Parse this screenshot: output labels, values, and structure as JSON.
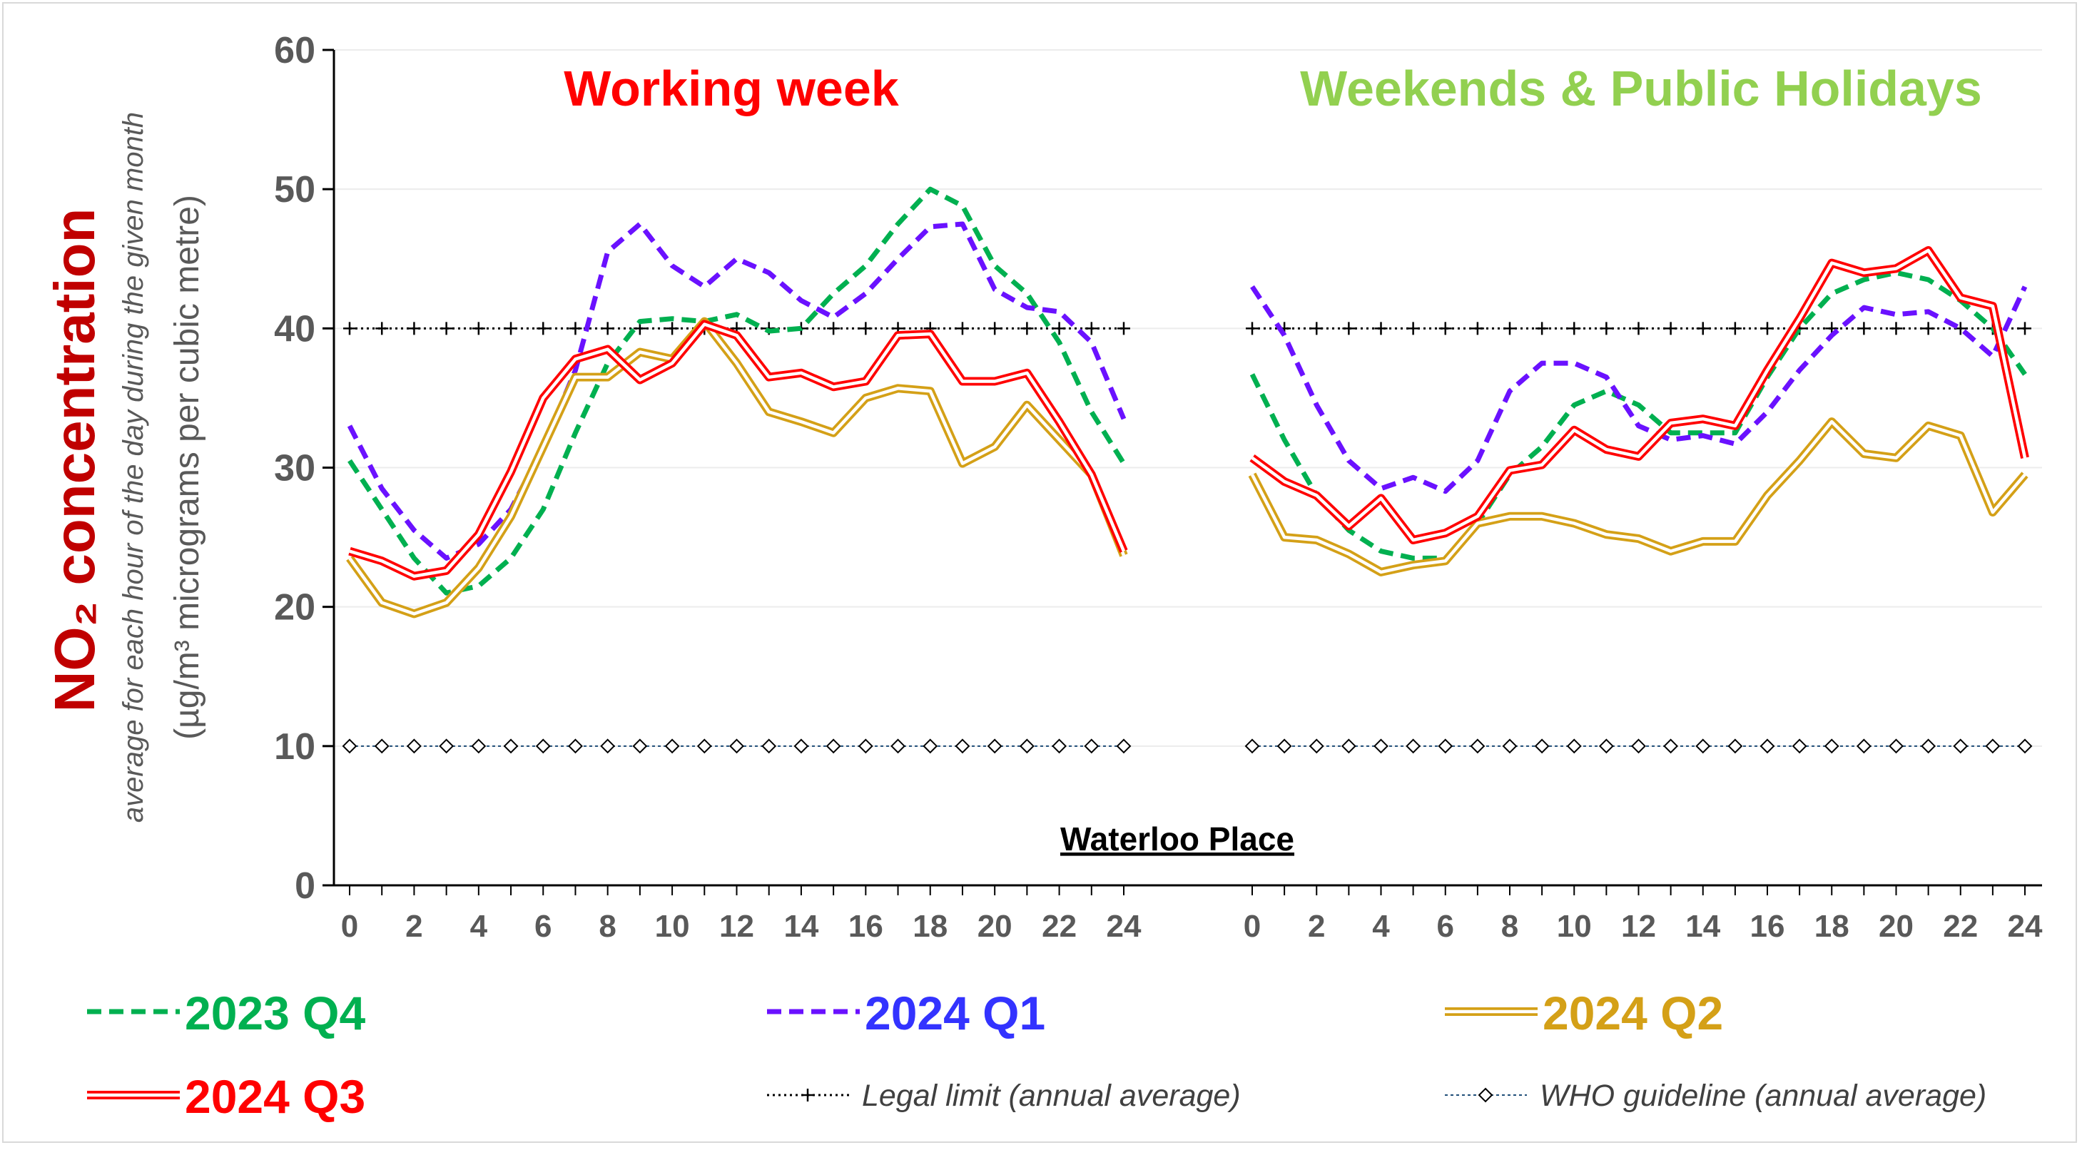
{
  "chart_data": {
    "type": "line",
    "title": "",
    "location_label": "Waterloo Place",
    "panel_titles": {
      "left": "Working week",
      "right": "Weekends & Public Holidays"
    },
    "ylabel": {
      "main": "NO₂ concentration",
      "line2": "average for each hour of the day during the given month",
      "line3": "(µg/m³ micrograms per cubic metre)"
    },
    "ylim": [
      0,
      60
    ],
    "yticks": [
      "0",
      "10",
      "20",
      "30",
      "40",
      "50",
      "60"
    ],
    "xlim": [
      0,
      24
    ],
    "xticks": [
      "0",
      "2",
      "4",
      "6",
      "8",
      "10",
      "12",
      "14",
      "16",
      "18",
      "20",
      "22",
      "24"
    ],
    "grid": "horizontal",
    "legend_position": "bottom",
    "colors": {
      "left_title": "#ff0000",
      "right_title": "#92d050",
      "ylabel_main": "#c00000",
      "axis_text": "#595959"
    },
    "series": [
      {
        "name": "2023 Q4",
        "color": "#00b050",
        "style": "dashed",
        "working": [
          30.5,
          27,
          23.5,
          21,
          21.5,
          23.5,
          27,
          32.5,
          37.5,
          40.5,
          40.7,
          40.5,
          41,
          39.8,
          40,
          42.5,
          44.5,
          47.5,
          50,
          48.8,
          44.5,
          42.5,
          39,
          34,
          30.3
        ],
        "weekend": [
          36.7,
          32,
          28,
          25.5,
          24,
          23.5,
          23.5,
          26,
          29.5,
          31.5,
          34.5,
          35.5,
          34.5,
          32.5,
          32.5,
          32.5,
          36.5,
          40,
          42.5,
          43.5,
          44,
          43.5,
          42,
          40,
          36.7
        ]
      },
      {
        "name": "2024 Q1",
        "color": "#6a11ff",
        "style": "dashed",
        "working": [
          33,
          28.5,
          25.5,
          23.5,
          24.5,
          27,
          31.5,
          37,
          45.5,
          47.5,
          44.5,
          43,
          45,
          44,
          42,
          40.8,
          42.5,
          45,
          47.3,
          47.5,
          42.8,
          41.5,
          41.2,
          39,
          33.5
        ],
        "weekend": [
          43,
          39.5,
          34.5,
          30.5,
          28.5,
          29.3,
          28.3,
          30.5,
          35.5,
          37.5,
          37.5,
          36.5,
          33,
          32,
          32.3,
          31.7,
          34,
          37,
          39.5,
          41.5,
          41,
          41.2,
          40,
          38,
          43
        ]
      },
      {
        "name": "2024 Q2",
        "color": "#d4a017",
        "style": "double",
        "working": [
          23.5,
          20.3,
          19.5,
          20.3,
          22.8,
          26.5,
          31.5,
          36.5,
          36.5,
          38.3,
          37.8,
          40.5,
          37.5,
          34,
          33.3,
          32.5,
          35,
          35.7,
          35.5,
          30.3,
          31.5,
          34.5,
          32,
          29.5,
          23.7
        ],
        "weekend": [
          29.5,
          25,
          24.8,
          23.8,
          22.5,
          23,
          23.3,
          26,
          26.5,
          26.5,
          26,
          25.2,
          24.9,
          24,
          24.7,
          24.7,
          28,
          30.5,
          33.3,
          31,
          30.7,
          33,
          32.3,
          26.8,
          29.5
        ]
      },
      {
        "name": "2024 Q3",
        "color": "#ff0000",
        "style": "double",
        "working": [
          24,
          23.3,
          22.2,
          22.6,
          25.2,
          29.7,
          35,
          37.8,
          38.5,
          36.3,
          37.5,
          40.3,
          39.5,
          36.5,
          36.8,
          35.8,
          36.2,
          39.5,
          39.6,
          36.2,
          36.2,
          36.8,
          33.3,
          29.5,
          24
        ],
        "weekend": [
          30.7,
          29,
          28,
          25.8,
          27.8,
          24.8,
          25.3,
          26.5,
          29.8,
          30.2,
          32.7,
          31.3,
          30.8,
          33.2,
          33.5,
          33,
          37,
          40.7,
          44.7,
          44,
          44.3,
          45.6,
          42.2,
          41.6,
          30.7
        ]
      }
    ],
    "reference_lines": [
      {
        "name": "Legal limit (annual average)",
        "value": 40,
        "color": "#000000",
        "marker": "plus"
      },
      {
        "name": "WHO guideline (annual average)",
        "value": 10,
        "color": "#1f4e79",
        "marker": "diamond"
      }
    ]
  }
}
